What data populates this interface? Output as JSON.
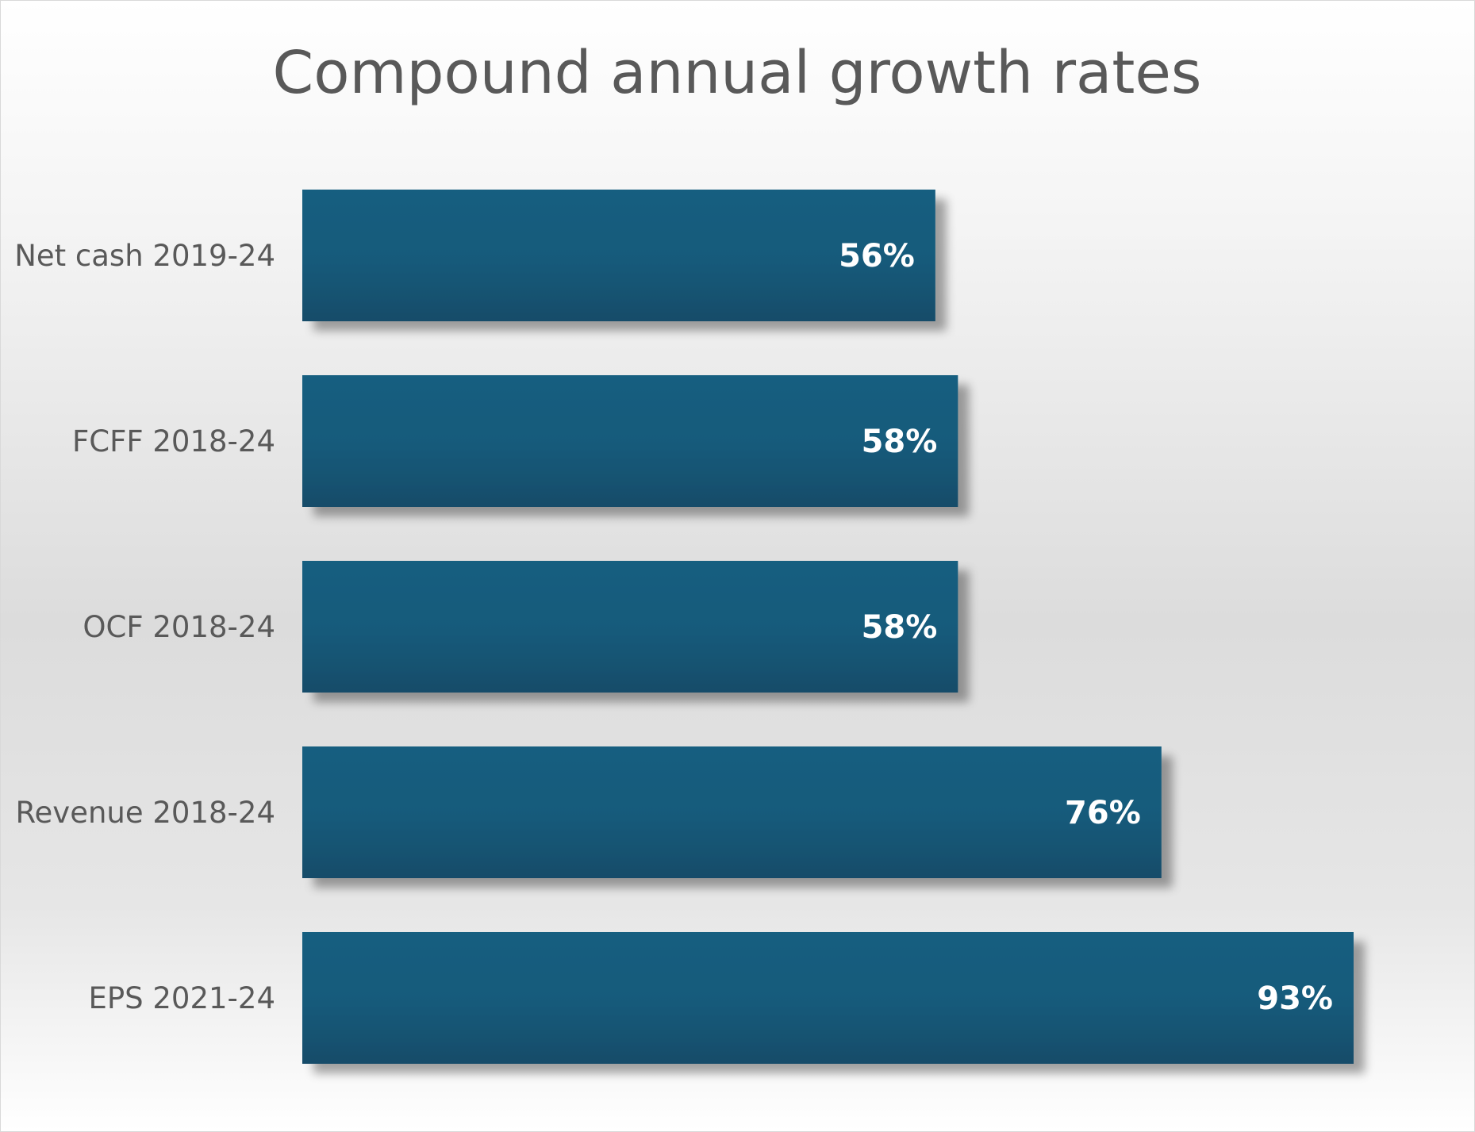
{
  "chart_data": {
    "type": "bar",
    "orientation": "horizontal",
    "title": "Compound annual growth rates",
    "xlabel": "",
    "ylabel": "",
    "categories": [
      "Net cash 2019-24",
      "FCFF 2018-24",
      "OCF 2018-24",
      "Revenue 2018-24",
      "EPS 2021-24"
    ],
    "values": [
      56,
      58,
      58,
      76,
      93
    ],
    "value_labels": [
      "56%",
      "58%",
      "58%",
      "76%",
      "93%"
    ],
    "xlim": [
      0,
      93
    ],
    "grid": false,
    "legend": "none",
    "bar_color": "#155a7a",
    "bar_color_dark": "#134f6c"
  }
}
